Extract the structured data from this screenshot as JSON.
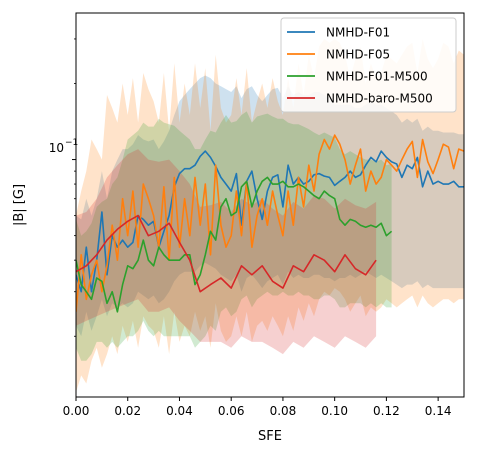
{
  "chart_data": {
    "type": "line",
    "xlabel": "SFE",
    "ylabel": "|B| [G]",
    "yscale": "log",
    "xlim": [
      0.0,
      0.15
    ],
    "ylim": [
      0.0115,
      0.38
    ],
    "xticks": [
      0.0,
      0.02,
      0.04,
      0.06,
      0.08,
      0.1,
      0.12,
      0.14
    ],
    "xtick_labels": [
      "0.00",
      "0.02",
      "0.04",
      "0.06",
      "0.08",
      "0.10",
      "0.12",
      "0.14"
    ],
    "ytick_major": [
      0.1
    ],
    "ytick_labels": [
      "10",
      "−1"
    ],
    "legend_position": "top-right",
    "grid": false,
    "series": [
      {
        "name": "NMHD-F01",
        "color": "#1f77b4",
        "x": [
          0.0,
          0.002,
          0.004,
          0.006,
          0.008,
          0.01,
          0.012,
          0.014,
          0.016,
          0.018,
          0.02,
          0.022,
          0.024,
          0.026,
          0.028,
          0.03,
          0.032,
          0.034,
          0.036,
          0.038,
          0.04,
          0.042,
          0.044,
          0.046,
          0.048,
          0.05,
          0.052,
          0.054,
          0.056,
          0.058,
          0.06,
          0.062,
          0.064,
          0.066,
          0.068,
          0.07,
          0.072,
          0.074,
          0.076,
          0.078,
          0.08,
          0.082,
          0.084,
          0.086,
          0.088,
          0.09,
          0.092,
          0.094,
          0.096,
          0.098,
          0.1,
          0.102,
          0.104,
          0.106,
          0.108,
          0.11,
          0.112,
          0.114,
          0.116,
          0.118,
          0.12,
          0.122,
          0.124,
          0.126,
          0.128,
          0.13,
          0.132,
          0.134,
          0.136,
          0.138,
          0.14,
          0.142,
          0.144,
          0.146,
          0.148,
          0.15
        ],
        "y": [
          0.035,
          0.03,
          0.045,
          0.03,
          0.04,
          0.062,
          0.035,
          0.05,
          0.045,
          0.048,
          0.045,
          0.047,
          0.06,
          0.058,
          0.055,
          0.057,
          0.045,
          0.052,
          0.06,
          0.078,
          0.088,
          0.092,
          0.092,
          0.095,
          0.103,
          0.108,
          0.102,
          0.094,
          0.085,
          0.08,
          0.075,
          0.088,
          0.055,
          0.082,
          0.09,
          0.07,
          0.058,
          0.075,
          0.085,
          0.087,
          0.065,
          0.095,
          0.08,
          0.085,
          0.08,
          0.082,
          0.087,
          0.088,
          0.086,
          0.085,
          0.079,
          0.082,
          0.085,
          0.09,
          0.085,
          0.087,
          0.095,
          0.102,
          0.098,
          0.108,
          0.102,
          0.098,
          0.096,
          0.085,
          0.095,
          0.092,
          0.102,
          0.078,
          0.09,
          0.08,
          0.082,
          0.08,
          0.08,
          0.082,
          0.078,
          0.078
        ],
        "lower": [
          0.022,
          0.02,
          0.025,
          0.021,
          0.024,
          0.028,
          0.024,
          0.027,
          0.026,
          0.027,
          0.026,
          0.027,
          0.03,
          0.029,
          0.028,
          0.029,
          0.027,
          0.028,
          0.03,
          0.033,
          0.035,
          0.036,
          0.036,
          0.036,
          0.038,
          0.039,
          0.038,
          0.037,
          0.035,
          0.034,
          0.033,
          0.035,
          0.03,
          0.034,
          0.035,
          0.033,
          0.031,
          0.033,
          0.034,
          0.035,
          0.032,
          0.036,
          0.034,
          0.035,
          0.034,
          0.034,
          0.035,
          0.035,
          0.034,
          0.034,
          0.033,
          0.034,
          0.034,
          0.035,
          0.034,
          0.035,
          0.036,
          0.035,
          0.034,
          0.035,
          0.034,
          0.033,
          0.032,
          0.031,
          0.032,
          0.032,
          0.033,
          0.031,
          0.032,
          0.031,
          0.031,
          0.031,
          0.031,
          0.031,
          0.031,
          0.031
        ],
        "upper": [
          0.06,
          0.058,
          0.07,
          0.06,
          0.07,
          0.09,
          0.07,
          0.09,
          0.1,
          0.11,
          0.11,
          0.115,
          0.125,
          0.12,
          0.118,
          0.12,
          0.11,
          0.118,
          0.13,
          0.15,
          0.17,
          0.18,
          0.19,
          0.2,
          0.21,
          0.215,
          0.21,
          0.2,
          0.195,
          0.19,
          0.185,
          0.195,
          0.175,
          0.19,
          0.195,
          0.18,
          0.17,
          0.18,
          0.19,
          0.192,
          0.175,
          0.195,
          0.18,
          0.185,
          0.18,
          0.18,
          0.185,
          0.185,
          0.18,
          0.175,
          0.165,
          0.165,
          0.165,
          0.165,
          0.16,
          0.16,
          0.165,
          0.17,
          0.165,
          0.165,
          0.16,
          0.155,
          0.15,
          0.14,
          0.145,
          0.14,
          0.145,
          0.13,
          0.135,
          0.13,
          0.13,
          0.128,
          0.128,
          0.128,
          0.126,
          0.126
        ]
      },
      {
        "name": "NMHD-F05",
        "color": "#ff7f0e",
        "x": [
          0.0,
          0.002,
          0.004,
          0.006,
          0.008,
          0.01,
          0.012,
          0.014,
          0.016,
          0.018,
          0.02,
          0.022,
          0.024,
          0.026,
          0.028,
          0.03,
          0.032,
          0.034,
          0.036,
          0.038,
          0.04,
          0.042,
          0.044,
          0.046,
          0.048,
          0.05,
          0.052,
          0.054,
          0.056,
          0.058,
          0.06,
          0.062,
          0.064,
          0.066,
          0.068,
          0.07,
          0.072,
          0.074,
          0.076,
          0.078,
          0.08,
          0.082,
          0.084,
          0.086,
          0.088,
          0.09,
          0.092,
          0.094,
          0.096,
          0.098,
          0.1,
          0.102,
          0.104,
          0.106,
          0.108,
          0.11,
          0.112,
          0.114,
          0.116,
          0.118,
          0.12,
          0.122,
          0.124,
          0.126,
          0.128,
          0.13,
          0.132,
          0.134,
          0.136,
          0.138,
          0.14,
          0.142,
          0.144,
          0.146,
          0.148,
          0.15
        ],
        "y": [
          0.025,
          0.042,
          0.028,
          0.035,
          0.04,
          0.03,
          0.038,
          0.055,
          0.04,
          0.07,
          0.05,
          0.075,
          0.045,
          0.08,
          0.07,
          0.06,
          0.045,
          0.078,
          0.04,
          0.085,
          0.045,
          0.07,
          0.05,
          0.085,
          0.055,
          0.08,
          0.042,
          0.095,
          0.055,
          0.045,
          0.05,
          0.075,
          0.05,
          0.082,
          0.045,
          0.06,
          0.07,
          0.055,
          0.075,
          0.06,
          0.05,
          0.075,
          0.055,
          0.085,
          0.065,
          0.095,
          0.075,
          0.105,
          0.12,
          0.11,
          0.125,
          0.115,
          0.1,
          0.08,
          0.095,
          0.11,
          0.075,
          0.09,
          0.08,
          0.085,
          0.1,
          0.095,
          0.09,
          0.1,
          0.11,
          0.118,
          0.085,
          0.12,
          0.098,
          0.088,
          0.1,
          0.115,
          0.112,
          0.092,
          0.11,
          0.108
        ],
        "lower": [
          0.012,
          0.014,
          0.013,
          0.016,
          0.018,
          0.015,
          0.017,
          0.02,
          0.017,
          0.022,
          0.019,
          0.023,
          0.018,
          0.024,
          0.022,
          0.021,
          0.018,
          0.024,
          0.017,
          0.025,
          0.019,
          0.022,
          0.02,
          0.025,
          0.021,
          0.024,
          0.018,
          0.027,
          0.021,
          0.019,
          0.02,
          0.024,
          0.02,
          0.025,
          0.019,
          0.022,
          0.023,
          0.021,
          0.024,
          0.022,
          0.02,
          0.024,
          0.021,
          0.026,
          0.023,
          0.027,
          0.024,
          0.028,
          0.03,
          0.029,
          0.031,
          0.03,
          0.028,
          0.025,
          0.027,
          0.029,
          0.024,
          0.026,
          0.025,
          0.026,
          0.028,
          0.027,
          0.026,
          0.027,
          0.028,
          0.029,
          0.026,
          0.029,
          0.027,
          0.026,
          0.027,
          0.028,
          0.028,
          0.027,
          0.028,
          0.028
        ],
        "upper": [
          0.06,
          0.075,
          0.09,
          0.12,
          0.11,
          0.1,
          0.18,
          0.16,
          0.14,
          0.2,
          0.15,
          0.21,
          0.14,
          0.22,
          0.19,
          0.17,
          0.14,
          0.22,
          0.13,
          0.24,
          0.14,
          0.2,
          0.15,
          0.24,
          0.16,
          0.23,
          0.13,
          0.26,
          0.16,
          0.14,
          0.15,
          0.21,
          0.15,
          0.23,
          0.14,
          0.17,
          0.2,
          0.16,
          0.21,
          0.17,
          0.15,
          0.21,
          0.16,
          0.24,
          0.18,
          0.26,
          0.21,
          0.28,
          0.3,
          0.29,
          0.3,
          0.29,
          0.26,
          0.21,
          0.25,
          0.28,
          0.2,
          0.24,
          0.21,
          0.22,
          0.26,
          0.25,
          0.24,
          0.26,
          0.28,
          0.29,
          0.22,
          0.3,
          0.25,
          0.23,
          0.25,
          0.29,
          0.28,
          0.24,
          0.27,
          0.26
        ]
      },
      {
        "name": "NMHD-F01-M500",
        "color": "#2ca02c",
        "x": [
          0.0,
          0.002,
          0.004,
          0.006,
          0.008,
          0.01,
          0.012,
          0.014,
          0.016,
          0.018,
          0.02,
          0.022,
          0.024,
          0.026,
          0.028,
          0.03,
          0.032,
          0.034,
          0.036,
          0.038,
          0.04,
          0.042,
          0.044,
          0.046,
          0.048,
          0.05,
          0.052,
          0.054,
          0.056,
          0.058,
          0.06,
          0.062,
          0.064,
          0.066,
          0.068,
          0.07,
          0.072,
          0.074,
          0.076,
          0.078,
          0.08,
          0.082,
          0.084,
          0.086,
          0.088,
          0.09,
          0.092,
          0.094,
          0.096,
          0.098,
          0.1,
          0.102,
          0.104,
          0.106,
          0.108,
          0.11,
          0.112,
          0.114,
          0.116,
          0.118,
          0.12,
          0.122
        ],
        "y": [
          0.04,
          0.032,
          0.03,
          0.028,
          0.034,
          0.033,
          0.027,
          0.03,
          0.025,
          0.032,
          0.038,
          0.037,
          0.04,
          0.048,
          0.04,
          0.038,
          0.045,
          0.042,
          0.04,
          0.04,
          0.04,
          0.042,
          0.042,
          0.032,
          0.035,
          0.042,
          0.052,
          0.048,
          0.065,
          0.07,
          0.06,
          0.062,
          0.078,
          0.082,
          0.065,
          0.075,
          0.082,
          0.085,
          0.08,
          0.08,
          0.082,
          0.078,
          0.078,
          0.08,
          0.078,
          0.075,
          0.072,
          0.07,
          0.075,
          0.072,
          0.07,
          0.058,
          0.055,
          0.058,
          0.057,
          0.055,
          0.054,
          0.055,
          0.054,
          0.056,
          0.05,
          0.052
        ],
        "lower": [
          0.018,
          0.016,
          0.016,
          0.017,
          0.019,
          0.019,
          0.018,
          0.019,
          0.018,
          0.019,
          0.02,
          0.02,
          0.021,
          0.023,
          0.021,
          0.02,
          0.021,
          0.02,
          0.02,
          0.02,
          0.02,
          0.02,
          0.02,
          0.018,
          0.019,
          0.02,
          0.022,
          0.021,
          0.025,
          0.026,
          0.024,
          0.025,
          0.028,
          0.029,
          0.026,
          0.028,
          0.029,
          0.03,
          0.029,
          0.029,
          0.03,
          0.029,
          0.029,
          0.03,
          0.029,
          0.029,
          0.028,
          0.028,
          0.029,
          0.029,
          0.028,
          0.026,
          0.026,
          0.027,
          0.027,
          0.027,
          0.026,
          0.027,
          0.026,
          0.027,
          0.026,
          0.026
        ],
        "upper": [
          0.058,
          0.05,
          0.052,
          0.056,
          0.065,
          0.068,
          0.07,
          0.08,
          0.085,
          0.1,
          0.12,
          0.125,
          0.13,
          0.14,
          0.135,
          0.135,
          0.145,
          0.14,
          0.138,
          0.136,
          0.13,
          0.125,
          0.12,
          0.11,
          0.11,
          0.12,
          0.13,
          0.128,
          0.14,
          0.15,
          0.14,
          0.142,
          0.15,
          0.155,
          0.14,
          0.148,
          0.15,
          0.152,
          0.148,
          0.145,
          0.145,
          0.14,
          0.138,
          0.138,
          0.135,
          0.132,
          0.128,
          0.125,
          0.128,
          0.125,
          0.122,
          0.11,
          0.105,
          0.108,
          0.105,
          0.102,
          0.1,
          0.1,
          0.098,
          0.1,
          0.095,
          0.096
        ]
      },
      {
        "name": "NMHD-baro-M500",
        "color": "#d62728",
        "x": [
          0.0,
          0.004,
          0.008,
          0.012,
          0.016,
          0.02,
          0.024,
          0.028,
          0.032,
          0.036,
          0.04,
          0.044,
          0.048,
          0.052,
          0.056,
          0.06,
          0.064,
          0.068,
          0.072,
          0.076,
          0.08,
          0.084,
          0.088,
          0.092,
          0.096,
          0.1,
          0.104,
          0.108,
          0.112,
          0.116
        ],
        "y": [
          0.036,
          0.038,
          0.042,
          0.048,
          0.053,
          0.057,
          0.06,
          0.05,
          0.052,
          0.056,
          0.047,
          0.04,
          0.03,
          0.032,
          0.034,
          0.031,
          0.038,
          0.035,
          0.038,
          0.033,
          0.031,
          0.038,
          0.036,
          0.042,
          0.04,
          0.036,
          0.042,
          0.037,
          0.035,
          0.04
        ],
        "lower": [
          0.022,
          0.023,
          0.024,
          0.025,
          0.026,
          0.027,
          0.028,
          0.025,
          0.025,
          0.026,
          0.023,
          0.021,
          0.019,
          0.019,
          0.019,
          0.018,
          0.02,
          0.019,
          0.019,
          0.018,
          0.017,
          0.019,
          0.018,
          0.02,
          0.019,
          0.018,
          0.02,
          0.019,
          0.018,
          0.02
        ],
        "upper": [
          0.06,
          0.062,
          0.07,
          0.085,
          0.095,
          0.105,
          0.11,
          0.1,
          0.098,
          0.1,
          0.09,
          0.08,
          0.065,
          0.066,
          0.068,
          0.062,
          0.07,
          0.066,
          0.07,
          0.064,
          0.06,
          0.068,
          0.064,
          0.072,
          0.07,
          0.064,
          0.07,
          0.066,
          0.064,
          0.068
        ]
      }
    ]
  }
}
